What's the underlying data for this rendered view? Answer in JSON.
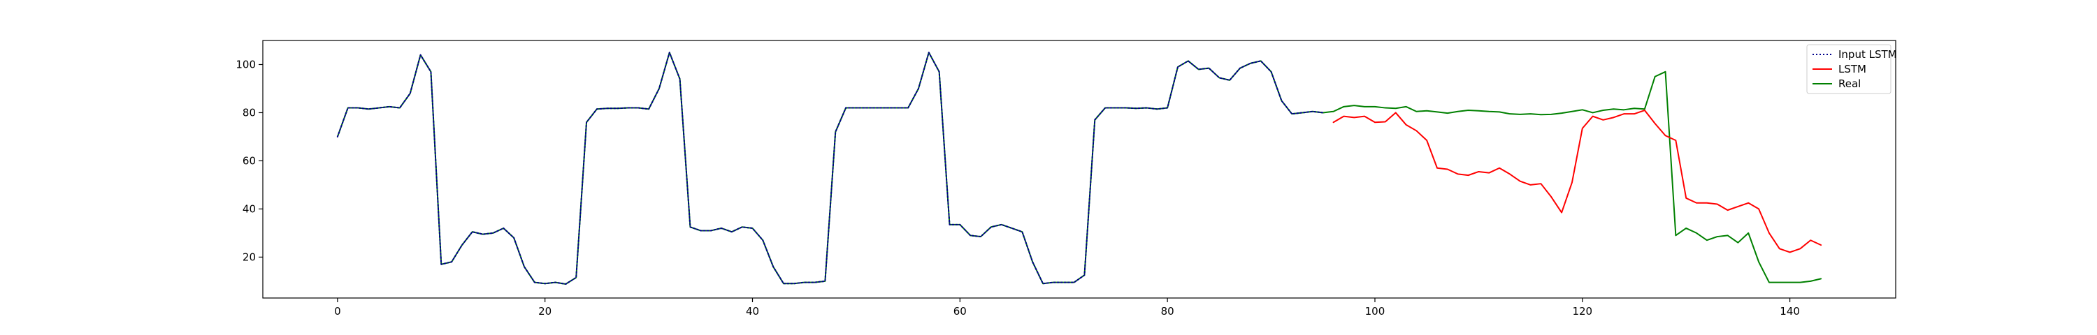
{
  "chart_data": {
    "type": "line",
    "title": "",
    "xlabel": "",
    "ylabel": "",
    "xlim": [
      -7.2,
      150.2
    ],
    "ylim": [
      3,
      110
    ],
    "xticks": [
      0,
      20,
      40,
      60,
      80,
      100,
      120,
      140
    ],
    "yticks": [
      20,
      40,
      60,
      80,
      100
    ],
    "grid": false,
    "legend_position": "top-right",
    "series": [
      {
        "name": "Input LSTM",
        "color": "#00008b",
        "style": "dotted",
        "x": [
          0,
          1,
          2,
          3,
          4,
          5,
          6,
          7,
          8,
          9,
          10,
          11,
          12,
          13,
          14,
          15,
          16,
          17,
          18,
          19,
          20,
          21,
          22,
          23,
          24,
          25,
          26,
          27,
          28,
          29,
          30,
          31,
          32,
          33,
          34,
          35,
          36,
          37,
          38,
          39,
          40,
          41,
          42,
          43,
          44,
          45,
          46,
          47,
          48,
          49,
          50,
          51,
          52,
          53,
          54,
          55,
          56,
          57,
          58,
          59,
          60,
          61,
          62,
          63,
          64,
          65,
          66,
          67,
          68,
          69,
          70,
          71,
          72,
          73,
          74,
          75,
          76,
          77,
          78,
          79,
          80,
          81,
          82,
          83,
          84,
          85,
          86,
          87,
          88,
          89,
          90,
          91,
          92,
          93,
          94,
          95
        ],
        "y": [
          70,
          82,
          82,
          81.5,
          82,
          82.5,
          82,
          88,
          104,
          97,
          17,
          18,
          25,
          30.5,
          29.5,
          30,
          32,
          28,
          16,
          9.5,
          9,
          9.5,
          8.8,
          11.5,
          76,
          81.5,
          81.8,
          81.8,
          82,
          82,
          81.5,
          90,
          105,
          94,
          32.5,
          31,
          31,
          32,
          30.5,
          32.5,
          32,
          27,
          16,
          9,
          9,
          9.5,
          9.5,
          10,
          72,
          82,
          82,
          82,
          82,
          82,
          82,
          82,
          90,
          105,
          97,
          33.5,
          33.5,
          29,
          28.5,
          32.5,
          33.5,
          32,
          30.5,
          18,
          9,
          9.5,
          9.5,
          9.5,
          12.5,
          77,
          82,
          82,
          82,
          81.8,
          82,
          81.5,
          82,
          99,
          101.5,
          98,
          98.5,
          94.5,
          93.5,
          98.5,
          100.5,
          101.5,
          97,
          85,
          79.5,
          80,
          80.5,
          80
        ]
      },
      {
        "name": "LSTM",
        "color": "#ff0000",
        "style": "solid",
        "x": [
          96,
          97,
          98,
          99,
          100,
          101,
          102,
          103,
          104,
          105,
          106,
          107,
          108,
          109,
          110,
          111,
          112,
          113,
          114,
          115,
          116,
          117,
          118,
          119,
          120,
          121,
          122,
          123,
          124,
          125,
          126,
          127,
          128,
          129,
          130,
          131,
          132,
          133,
          134,
          135,
          136,
          137,
          138,
          139,
          140,
          141,
          142,
          143
        ],
        "y": [
          76,
          78.5,
          78,
          78.5,
          76,
          76.2,
          80,
          75,
          72.5,
          68.5,
          57,
          56.5,
          54.5,
          54,
          55.5,
          55,
          57,
          54.5,
          51.5,
          50,
          50.5,
          45,
          38.5,
          51,
          73.5,
          78.5,
          77,
          78,
          79.5,
          79.5,
          81,
          75.5,
          70.5,
          68.5,
          44.5,
          42.5,
          42.5,
          42,
          39.5,
          41,
          42.5,
          40,
          30,
          23.5,
          22,
          23.5,
          27,
          25
        ]
      },
      {
        "name": "Real",
        "color": "#008000",
        "style": "solid",
        "x": [
          0,
          1,
          2,
          3,
          4,
          5,
          6,
          7,
          8,
          9,
          10,
          11,
          12,
          13,
          14,
          15,
          16,
          17,
          18,
          19,
          20,
          21,
          22,
          23,
          24,
          25,
          26,
          27,
          28,
          29,
          30,
          31,
          32,
          33,
          34,
          35,
          36,
          37,
          38,
          39,
          40,
          41,
          42,
          43,
          44,
          45,
          46,
          47,
          48,
          49,
          50,
          51,
          52,
          53,
          54,
          55,
          56,
          57,
          58,
          59,
          60,
          61,
          62,
          63,
          64,
          65,
          66,
          67,
          68,
          69,
          70,
          71,
          72,
          73,
          74,
          75,
          76,
          77,
          78,
          79,
          80,
          81,
          82,
          83,
          84,
          85,
          86,
          87,
          88,
          89,
          90,
          91,
          92,
          93,
          94,
          95,
          96,
          97,
          98,
          99,
          100,
          101,
          102,
          103,
          104,
          105,
          106,
          107,
          108,
          109,
          110,
          111,
          112,
          113,
          114,
          115,
          116,
          117,
          118,
          119,
          120,
          121,
          122,
          123,
          124,
          125,
          126,
          127,
          128,
          129,
          130,
          131,
          132,
          133,
          134,
          135,
          136,
          137,
          138,
          139,
          140,
          141,
          142,
          143
        ],
        "y": [
          70,
          82,
          82,
          81.5,
          82,
          82.5,
          82,
          88,
          104,
          97,
          17,
          18,
          25,
          30.5,
          29.5,
          30,
          32,
          28,
          16,
          9.5,
          9,
          9.5,
          8.8,
          11.5,
          76,
          81.5,
          81.8,
          81.8,
          82,
          82,
          81.5,
          90,
          105,
          94,
          32.5,
          31,
          31,
          32,
          30.5,
          32.5,
          32,
          27,
          16,
          9,
          9,
          9.5,
          9.5,
          10,
          72,
          82,
          82,
          82,
          82,
          82,
          82,
          82,
          90,
          105,
          97,
          33.5,
          33.5,
          29,
          28.5,
          32.5,
          33.5,
          32,
          30.5,
          18,
          9,
          9.5,
          9.5,
          9.5,
          12.5,
          77,
          82,
          82,
          82,
          81.8,
          82,
          81.5,
          82,
          99,
          101.5,
          98,
          98.5,
          94.5,
          93.5,
          98.5,
          100.5,
          101.5,
          97,
          85,
          79.5,
          80,
          80.5,
          80,
          80.5,
          82.5,
          83,
          82.5,
          82.5,
          82,
          81.8,
          82.5,
          80.5,
          80.8,
          80.3,
          79.8,
          80.5,
          81,
          80.8,
          80.5,
          80.3,
          79.5,
          79.3,
          79.5,
          79.2,
          79.3,
          79.8,
          80.5,
          81.2,
          80,
          81,
          81.5,
          81.2,
          81.8,
          81.5,
          95,
          97,
          29,
          32,
          30,
          27,
          28.5,
          29,
          26,
          30,
          18,
          9.5,
          9.5,
          9.5,
          9.5,
          10,
          11
        ]
      }
    ]
  }
}
